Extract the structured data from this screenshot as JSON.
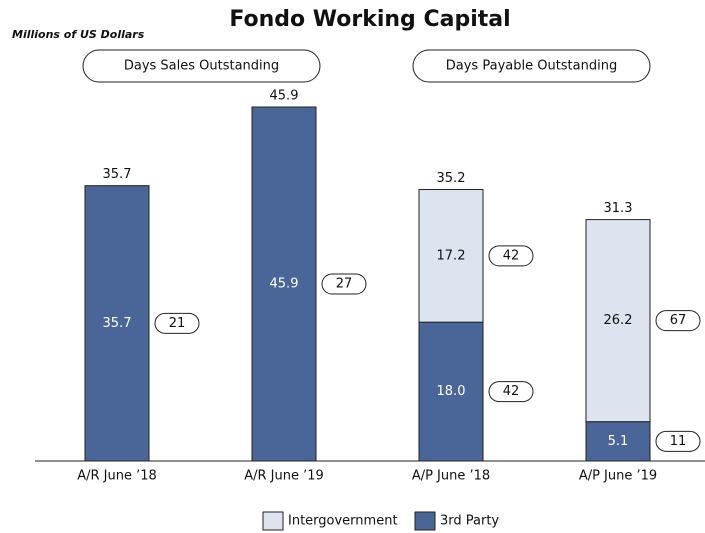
{
  "chart_data": {
    "type": "stacked_bar",
    "title": "Fondo Working Capital",
    "subtitle": "Millions of US Dollars",
    "groups": [
      "Days Sales Outstanding",
      "Days Payable Outstanding"
    ],
    "categories": [
      "A/R June ’18",
      "A/R June ’19",
      "A/P June ’18",
      "A/P June ’19"
    ],
    "series": [
      {
        "name": "3rd Party",
        "color": "#4a6698",
        "values": [
          35.7,
          45.9,
          18.0,
          5.1
        ],
        "value_labels": [
          "35.7",
          "45.9",
          "18.0",
          "5.1"
        ],
        "days": [
          21,
          27,
          42,
          11
        ]
      },
      {
        "name": "Intergovernment",
        "color": "#dde3ef",
        "values": [
          null,
          null,
          17.2,
          26.2
        ],
        "days": [
          null,
          null,
          42,
          67
        ]
      }
    ],
    "totals": [
      35.7,
      45.9,
      35.2,
      31.3
    ],
    "legend": "bottom"
  }
}
